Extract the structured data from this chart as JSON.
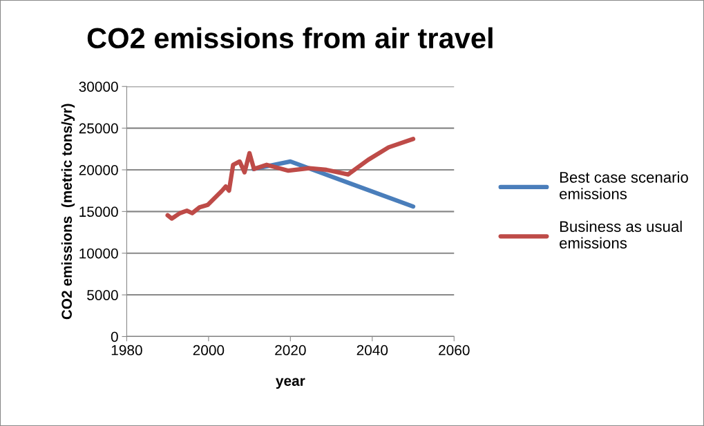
{
  "chart_data": {
    "type": "line",
    "title": "CO2 emissions from air travel",
    "xlabel": "year",
    "ylabel": "CO2 emissions  (metric tons/yr)",
    "xlim": [
      1980,
      2060
    ],
    "xticks": [
      1980,
      2000,
      2020,
      2040,
      2060
    ],
    "ylim": [
      0,
      30000
    ],
    "yticks": [
      0,
      5000,
      10000,
      15000,
      20000,
      25000,
      30000
    ],
    "grid": "y",
    "legend": "right",
    "marker": "none",
    "line_style": "solid",
    "series": [
      {
        "name": "Best case scenario\nemissions",
        "color": "#4a7ebb",
        "x": [
          2011,
          2020,
          2050
        ],
        "values": [
          20100,
          21000,
          15600
        ]
      },
      {
        "name": "Business as usual\nemissions",
        "color": "#be4b48",
        "x": [
          1990,
          1991,
          1993,
          1994.7,
          1996,
          1997.8,
          1999.8,
          2003.2,
          2004.2,
          2005,
          2006,
          2007.6,
          2008.8,
          2010,
          2011.1,
          2014.2,
          2019.5,
          2024.6,
          2028.8,
          2034.1,
          2039,
          2044,
          2050
        ],
        "values": [
          14550,
          14150,
          14800,
          15100,
          14800,
          15500,
          15800,
          17450,
          18000,
          17500,
          20600,
          21000,
          19700,
          22000,
          20100,
          20600,
          19900,
          20200,
          20000,
          19450,
          21200,
          22700,
          23700
        ]
      }
    ]
  }
}
